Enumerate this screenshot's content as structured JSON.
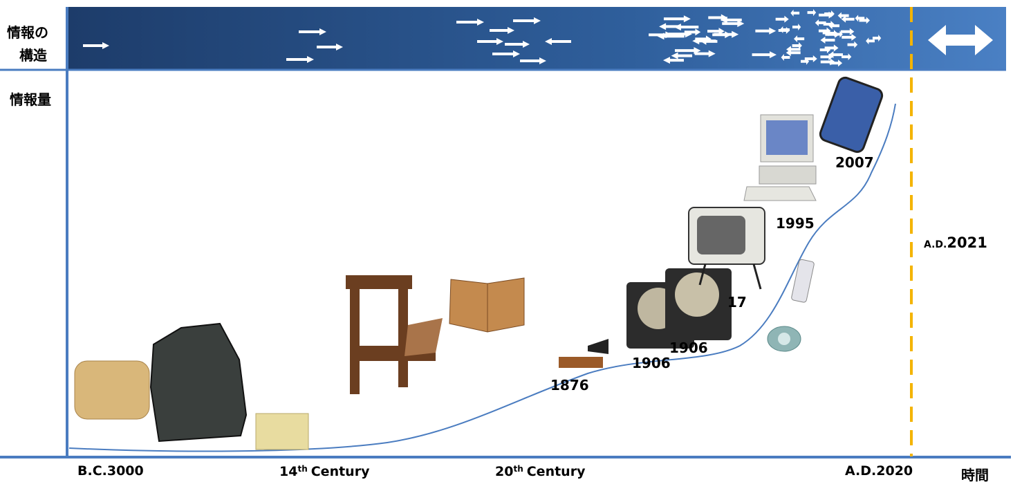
{
  "structure_label": [
    "情報の",
    "構造"
  ],
  "quantity_label": "情報量",
  "time_label": "時間",
  "x_labels": {
    "start": "B.C.3000",
    "c14": {
      "number": "14",
      "suffix": "th",
      "word": "Century"
    },
    "c20": {
      "number": "20",
      "suffix": "th",
      "word": "Century"
    },
    "end": "A.D.2020"
  },
  "present": {
    "prefix": "A.D.",
    "year": "2021"
  },
  "milestone_years": [
    "1876",
    "1906",
    "1906",
    "17",
    "1995",
    "2007"
  ]
}
